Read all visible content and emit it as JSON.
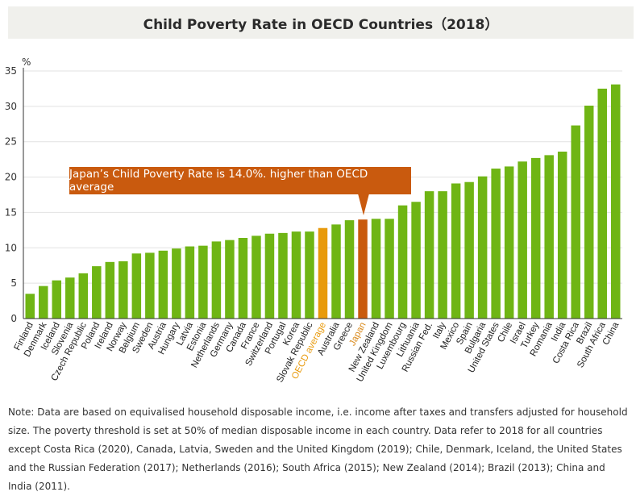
{
  "title": "Child Poverty Rate in OECD Countries（2018）",
  "callout": "Japan’s Child Poverty Rate is 14.0%.  higher than OECD average",
  "note": "Note: Data are based on equivalised household disposable income, i.e. income after taxes and transfers adjusted for household size. The poverty threshold is set at 50% of median disposable income in each country. Data refer to 2018 for all countries except Costa Rica (2020), Canada, Latvia, Sweden and the United Kingdom (2019); Chile, Denmark, Iceland, the United States and the Russian Federation (2017); Netherlands (2016); South Africa (2015); New Zealand (2014); Brazil (2013); China and India (2011).",
  "colors": {
    "bar": "#6fb514",
    "oecd_average": "#e89a0c",
    "japan": "#c95a0e",
    "oecd_label": "#e89a0c",
    "japan_label": "#d9891a",
    "grid": "#e2e2e2",
    "axis": "#333333"
  },
  "chart_data": {
    "type": "bar",
    "title": "Child Poverty Rate in OECD Countries（2018）",
    "ylabel": "%",
    "xlabel": "",
    "ylim": [
      0,
      35
    ],
    "yticks": [
      0,
      5,
      10,
      15,
      20,
      25,
      30,
      35
    ],
    "grid": true,
    "categories": [
      "Finland",
      "Denmark",
      "Iceland",
      "Slovenia",
      "Czech Republic",
      "Poland",
      "Ireland",
      "Norway",
      "Belgium",
      "Sweden",
      "Austria",
      "Hungary",
      "Latvia",
      "Estonia",
      "Netherlands",
      "Germany",
      "Canada",
      "France",
      "Switzerland",
      "Portugal",
      "Korea",
      "Slovak Republic",
      "OECD average",
      "Australia",
      "Greece",
      "Japan",
      "New Zealand",
      "United Kingdom",
      "Luxembourg",
      "Lithuania",
      "Russian Fed.",
      "Italy",
      "Mexico",
      "Spain",
      "Bulgaria",
      "United States",
      "Chile",
      "Israel",
      "Turkey",
      "Romania",
      "India",
      "Costa Rica",
      "Brazil",
      "South Africa",
      "China"
    ],
    "values": [
      3.5,
      4.6,
      5.4,
      5.8,
      6.4,
      7.4,
      8.0,
      8.1,
      9.2,
      9.3,
      9.6,
      9.9,
      10.2,
      10.3,
      10.9,
      11.1,
      11.4,
      11.7,
      12.0,
      12.1,
      12.3,
      12.3,
      12.8,
      13.3,
      13.9,
      14.0,
      14.1,
      14.1,
      16.0,
      16.5,
      18.0,
      18.0,
      19.1,
      19.3,
      20.1,
      21.2,
      21.5,
      22.2,
      22.7,
      23.1,
      23.6,
      27.3,
      30.1,
      32.5,
      33.1
    ],
    "highlights": {
      "OECD average": "oecd_average",
      "Japan": "japan"
    },
    "annotation": "Japan’s Child Poverty Rate is 14.0%.  higher than OECD average"
  }
}
